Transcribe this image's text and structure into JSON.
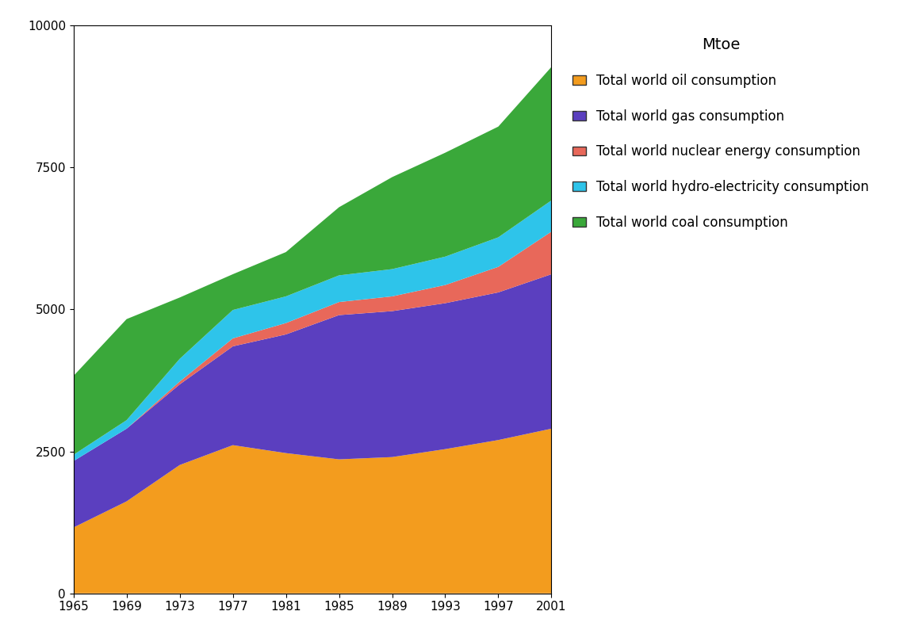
{
  "chart_data": {
    "type": "area",
    "stacked": true,
    "legend_title": "Mtoe",
    "legend": "upper left",
    "x": [
      1965,
      1969,
      1973,
      1977,
      1981,
      1985,
      1989,
      1993,
      1997,
      2001
    ],
    "xlim": [
      1965,
      2001
    ],
    "xticks": [
      1965,
      1969,
      1973,
      1977,
      1981,
      1985,
      1989,
      1993,
      1997,
      2001
    ],
    "ylim": [
      0,
      10000
    ],
    "yticks": [
      0,
      2500,
      5000,
      7500,
      10000
    ],
    "grid": false,
    "series": [
      {
        "name": "Total world oil consumption",
        "color": "#f39c1e",
        "values": [
          1160,
          1620,
          2260,
          2610,
          2470,
          2360,
          2400,
          2540,
          2700,
          2900
        ]
      },
      {
        "name": "Total world gas consumption",
        "color": "#5b3fbf",
        "values": [
          1170,
          1280,
          1420,
          1740,
          2090,
          2540,
          2570,
          2570,
          2600,
          2720
        ]
      },
      {
        "name": "Total world nuclear energy consumption",
        "color": "#e8685a",
        "values": [
          0,
          0,
          50,
          140,
          200,
          230,
          260,
          320,
          450,
          750
        ]
      },
      {
        "name": "Total world hydro-electricity consumption",
        "color": "#2ec4ea",
        "values": [
          110,
          150,
          400,
          500,
          470,
          470,
          480,
          500,
          520,
          550
        ]
      },
      {
        "name": "Total world coal consumption",
        "color": "#3aa83a",
        "values": [
          1390,
          1780,
          1080,
          630,
          780,
          1200,
          1620,
          1830,
          1950,
          2350
        ]
      }
    ]
  }
}
